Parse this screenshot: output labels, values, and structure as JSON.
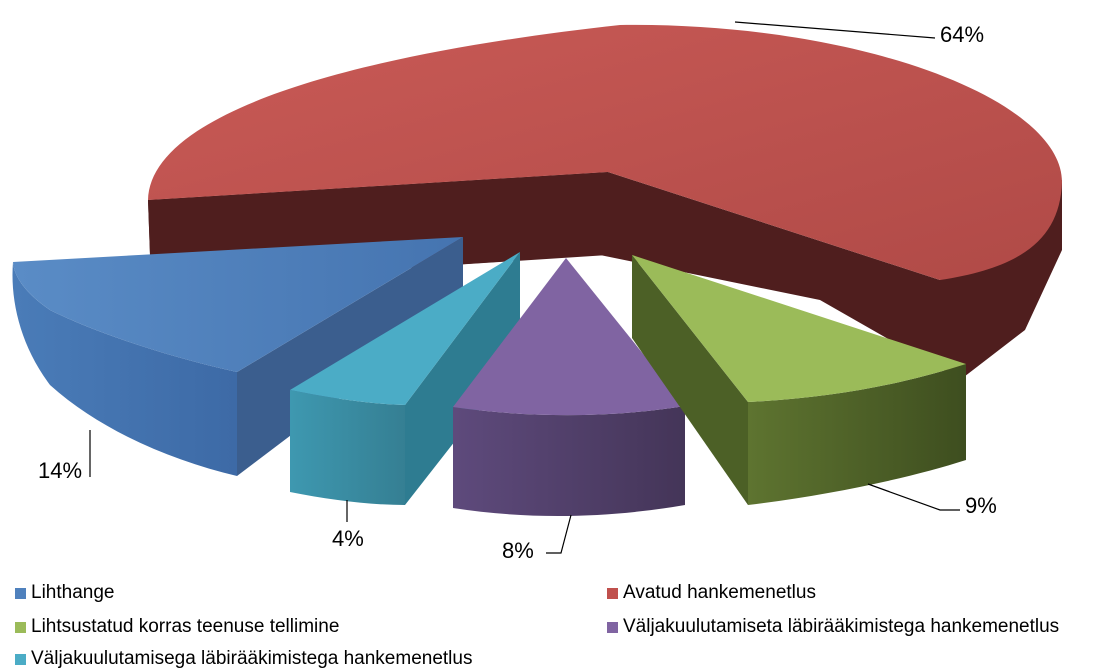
{
  "chart_data": {
    "type": "pie",
    "style": "3d-exploded",
    "categories": [
      "Lihthange",
      "Avatud hankemenetlus",
      "Lihtsustatud korras teenuse tellimine",
      "Väljakuulutamiseta läbirääkimistega hankemenetlus",
      "Väljakuulutamisega läbirääkimistega hankemenetlus"
    ],
    "values": [
      14,
      64,
      9,
      8,
      4
    ],
    "labels": [
      "14%",
      "64%",
      "9%",
      "8%",
      "4%"
    ],
    "colors": {
      "Lihthange": "#4F81BD",
      "Avatud hankemenetlus": "#C0504D",
      "Lihtsustatud korras teenuse tellimine": "#9BBB59",
      "Väljakuulutamiseta läbirääkimistega hankemenetlus": "#8064A2",
      "Väljakuulutamisega läbirääkimistega hankemenetlus": "#4BACC6"
    },
    "legend_position": "bottom"
  }
}
